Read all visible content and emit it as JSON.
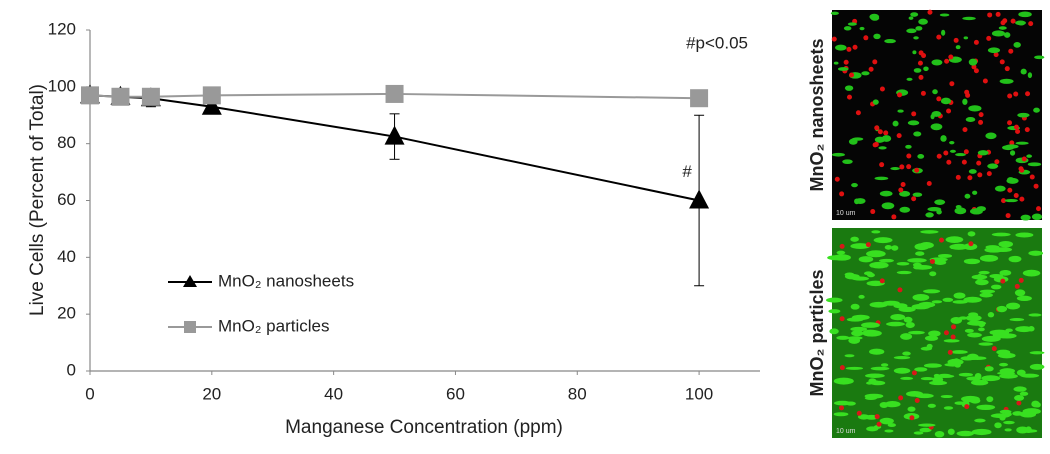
{
  "chart_data": {
    "type": "line",
    "xlabel": "Manganese Concentration (ppm)",
    "ylabel": "Live Cells (Percent of Total)",
    "annotations": [
      "#p<0.05",
      "#"
    ],
    "xlim": [
      0,
      110
    ],
    "xticks": [
      0,
      20,
      40,
      60,
      80,
      100
    ],
    "ylim": [
      0,
      120
    ],
    "yticks": [
      0,
      20,
      40,
      60,
      80,
      100,
      120
    ],
    "legend": "lower left",
    "series": [
      {
        "name": "MnO₂ nanosheets",
        "color": "#000000",
        "marker": "triangle",
        "x": [
          0,
          5,
          10,
          20,
          50,
          100
        ],
        "values": [
          97,
          96.5,
          96,
          93,
          82.5,
          60
        ],
        "errors": [
          1,
          1,
          3,
          2,
          8,
          30
        ]
      },
      {
        "name": "MnO₂ particles",
        "color": "#999999",
        "marker": "square",
        "x": [
          0,
          5,
          10,
          20,
          50,
          100
        ],
        "values": [
          97,
          96.5,
          96.5,
          97,
          97.5,
          96
        ],
        "errors": [
          1,
          1,
          1,
          1,
          1,
          1
        ]
      }
    ]
  },
  "images": [
    {
      "label": "MnO₂ nanosheets",
      "scale_bar": "10 um"
    },
    {
      "label": "MnO₂ particles",
      "scale_bar": "10 um"
    }
  ]
}
